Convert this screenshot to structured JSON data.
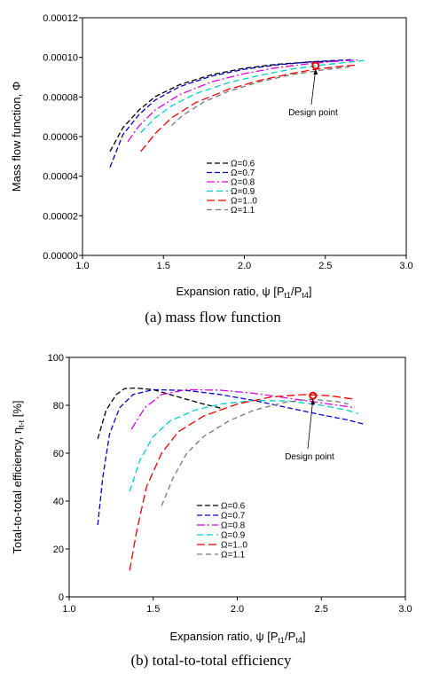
{
  "chart_data": [
    {
      "type": "line",
      "panel": "a",
      "caption": "(a)  mass  flow  function",
      "xlabel": "Expansion ratio, ψ [P",
      "xlabel_sub1": "t1",
      "xlabel_mid": "/P",
      "xlabel_sub2": "t4",
      "xlabel_end": "]",
      "ylabel": "Mass flow function, Φ",
      "xlim": [
        1.0,
        3.0
      ],
      "ylim": [
        0.0,
        0.00012
      ],
      "xticks": [
        1.0,
        1.5,
        2.0,
        2.5,
        3.0
      ],
      "xtick_labels": [
        "1.0",
        "1.5",
        "2.0",
        "2.5",
        "3.0"
      ],
      "yticks": [
        0.0,
        2e-05,
        4e-05,
        6e-05,
        8e-05,
        0.0001,
        0.00012
      ],
      "ytick_labels": [
        "0.00000",
        "0.00002",
        "0.00004",
        "0.00006",
        "0.00008",
        "0.00010",
        "0.00012"
      ],
      "series": [
        {
          "name": "Ω=0.6",
          "color": "#000000",
          "x": [
            1.17,
            1.25,
            1.35,
            1.45,
            1.6,
            1.8,
            2.0,
            2.2,
            2.4,
            2.58
          ],
          "y": [
            5.25e-05,
            6.45e-05,
            7.35e-05,
            8.02e-05,
            8.62e-05,
            9.13e-05,
            9.45e-05,
            9.65e-05,
            9.76e-05,
            9.82e-05
          ]
        },
        {
          "name": "Ω=0.7",
          "color": "#0000cc",
          "x": [
            1.17,
            1.25,
            1.35,
            1.45,
            1.6,
            1.8,
            2.0,
            2.2,
            2.4,
            2.6,
            2.66
          ],
          "y": [
            4.45e-05,
            6.1e-05,
            7.12e-05,
            7.85e-05,
            8.52e-05,
            9.06e-05,
            9.4e-05,
            9.62e-05,
            9.77e-05,
            9.86e-05,
            9.88e-05
          ]
        },
        {
          "name": "Ω=0.8",
          "color": "#e000e0",
          "x": [
            1.28,
            1.35,
            1.45,
            1.6,
            1.8,
            2.0,
            2.2,
            2.4,
            2.6,
            2.7
          ],
          "y": [
            5.75e-05,
            6.55e-05,
            7.35e-05,
            8.12e-05,
            8.77e-05,
            9.18e-05,
            9.48e-05,
            9.68e-05,
            9.82e-05,
            9.87e-05
          ]
        },
        {
          "name": "Ω=0.9",
          "color": "#00cccc",
          "x": [
            1.36,
            1.45,
            1.55,
            1.7,
            1.9,
            2.1,
            2.3,
            2.5,
            2.7,
            2.76
          ],
          "y": [
            6.2e-05,
            6.95e-05,
            7.55e-05,
            8.17e-05,
            8.72e-05,
            9.1e-05,
            9.42e-05,
            9.63e-05,
            9.81e-05,
            9.85e-05
          ]
        },
        {
          "name": "Ω=1..0",
          "color": "#ee0000",
          "x": [
            1.36,
            1.45,
            1.55,
            1.7,
            1.9,
            2.1,
            2.3,
            2.44,
            2.6,
            2.7
          ],
          "y": [
            5.25e-05,
            6.15e-05,
            6.95e-05,
            7.72e-05,
            8.38e-05,
            8.85e-05,
            9.2e-05,
            9.4e-05,
            9.55e-05,
            9.62e-05
          ]
        },
        {
          "name": "Ω=1.1",
          "color": "#777777",
          "x": [
            1.55,
            1.62,
            1.75,
            1.9,
            2.1,
            2.3,
            2.5,
            2.65
          ],
          "y": [
            6.55e-05,
            7.08e-05,
            7.75e-05,
            8.28e-05,
            8.78e-05,
            9.14e-05,
            9.38e-05,
            9.52e-05
          ]
        }
      ],
      "design_point": {
        "label": "Design point",
        "x": 2.44,
        "y": 9.58e-05
      },
      "legend_position": "lower-center"
    },
    {
      "type": "line",
      "panel": "b",
      "caption": "(b)  total-to-total  efficiency",
      "xlabel": "Expansion ratio,  ψ [P",
      "xlabel_sub1": "t1",
      "xlabel_mid": "/P",
      "xlabel_sub2": "t4",
      "xlabel_end": "]",
      "ylabel": "Total-to-total efficiency, η",
      "ylabel_sub": "t-t",
      "ylabel_end": " [%]",
      "xlim": [
        1.0,
        3.0
      ],
      "ylim": [
        0,
        100
      ],
      "xticks": [
        1.0,
        1.5,
        2.0,
        2.5,
        3.0
      ],
      "xtick_labels": [
        "1.0",
        "1.5",
        "2.0",
        "2.5",
        "3.0"
      ],
      "yticks": [
        0,
        20,
        40,
        60,
        80,
        100
      ],
      "ytick_labels": [
        "0",
        "20",
        "40",
        "60",
        "80",
        "100"
      ],
      "series": [
        {
          "name": "Ω=0.6",
          "color": "#000000",
          "x": [
            1.17,
            1.22,
            1.28,
            1.33,
            1.4,
            1.5,
            1.65,
            1.8,
            1.92
          ],
          "y": [
            66,
            78,
            84.5,
            87,
            87.2,
            86.5,
            83.5,
            80.5,
            78.5
          ]
        },
        {
          "name": "Ω=0.7",
          "color": "#0000cc",
          "x": [
            1.17,
            1.2,
            1.24,
            1.3,
            1.38,
            1.5,
            1.7,
            1.9,
            2.1,
            2.3,
            2.5,
            2.65,
            2.76
          ],
          "y": [
            30,
            50,
            68,
            79,
            84.5,
            86.5,
            86.2,
            84.5,
            82,
            79,
            76,
            74,
            72
          ]
        },
        {
          "name": "Ω=0.8",
          "color": "#e000e0",
          "x": [
            1.37,
            1.45,
            1.55,
            1.7,
            1.9,
            2.1,
            2.3,
            2.5,
            2.7
          ],
          "y": [
            70,
            79,
            84.5,
            86.5,
            86.3,
            85,
            83,
            81,
            79
          ]
        },
        {
          "name": "Ω=0.9",
          "color": "#00cccc",
          "x": [
            1.36,
            1.42,
            1.5,
            1.6,
            1.75,
            1.9,
            2.1,
            2.3,
            2.5,
            2.65,
            2.72
          ],
          "y": [
            44,
            57,
            67,
            73.5,
            78,
            80.5,
            82,
            81.8,
            80,
            78,
            76.5
          ]
        },
        {
          "name": "Ω=1..0",
          "color": "#ee0000",
          "x": [
            1.36,
            1.4,
            1.46,
            1.55,
            1.65,
            1.8,
            2.0,
            2.2,
            2.4,
            2.55,
            2.7
          ],
          "y": [
            11,
            27,
            46,
            60,
            69,
            75.5,
            80.5,
            83.5,
            84.5,
            84,
            82.5
          ]
        },
        {
          "name": "Ω=1.1",
          "color": "#777777",
          "x": [
            1.55,
            1.62,
            1.7,
            1.8,
            1.95,
            2.1,
            2.3,
            2.45,
            2.6,
            2.66
          ],
          "y": [
            38,
            50,
            60,
            67,
            73.5,
            78,
            81.5,
            82.5,
            81.5,
            80.5
          ]
        }
      ],
      "design_point": {
        "label": "Design point",
        "x": 2.45,
        "y": 84
      },
      "legend_position": "lower-center"
    }
  ]
}
